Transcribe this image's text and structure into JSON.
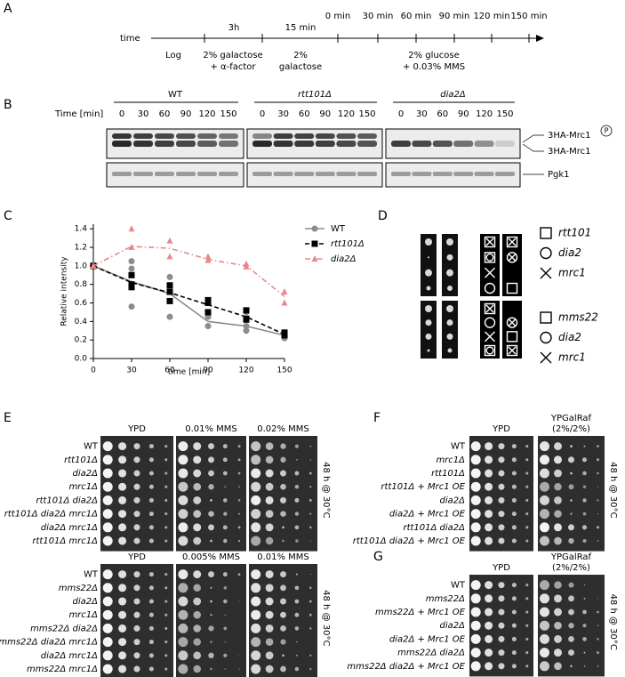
{
  "panel_a": {
    "label": "A",
    "axis_label": "time",
    "durations": [
      "3h",
      "15 min"
    ],
    "timepoints": [
      "0 min",
      "30 min",
      "60 min",
      "90 min",
      "120 min",
      "150 min"
    ],
    "conditions": [
      [
        "Log"
      ],
      [
        "2% galactose",
        "+ α-factor"
      ],
      [
        "2%",
        "galactose"
      ],
      [
        "2% glucose",
        "+ 0.03% MMS"
      ]
    ]
  },
  "panel_b": {
    "label": "B",
    "time_header": "Time [min]",
    "groups": [
      {
        "name": "WT",
        "times": [
          0,
          30,
          60,
          90,
          120,
          150
        ]
      },
      {
        "name": "rtt101Δ",
        "times": [
          0,
          30,
          60,
          90,
          120,
          150
        ]
      },
      {
        "name": "dia2Δ",
        "times": [
          0,
          30,
          60,
          90,
          120,
          150
        ]
      }
    ],
    "band_labels": [
      "3HA-Mrc1",
      "3HA-Mrc1",
      "Pgk1"
    ],
    "phospho_mark": "P"
  },
  "chart_data": {
    "type": "line",
    "panel_label": "C",
    "x": [
      0,
      30,
      60,
      90,
      120,
      150
    ],
    "xlim": [
      0,
      150
    ],
    "xticks": [
      0,
      30,
      60,
      90,
      120,
      150
    ],
    "ylim": [
      0,
      1.45
    ],
    "yticks": [
      {
        "value": 0,
        "label": "0.0"
      },
      0.2,
      0.4,
      0.6,
      0.8,
      {
        "value": 1,
        "label": "1.0"
      },
      1.2,
      1.4
    ],
    "xlabel": "time [min]",
    "ylabel": "Relative intensity",
    "legend": "upper right",
    "series": [
      {
        "name": "WT",
        "color": "#8c8c8c",
        "marker": "circle",
        "linestyle": "solid",
        "values": [
          1.0,
          0.83,
          0.7,
          0.4,
          0.35,
          0.25
        ],
        "replicates": [
          [
            1.0,
            1.0,
            1.0
          ],
          [
            1.05,
            0.97,
            0.56
          ],
          [
            0.88,
            0.72,
            0.45
          ],
          [
            0.35,
            0.45,
            0.48
          ],
          [
            0.5,
            0.35,
            0.3
          ],
          [
            0.22,
            0.25,
            0.28
          ]
        ]
      },
      {
        "name": "rtt101Δ",
        "color": "#000000",
        "marker": "square",
        "linestyle": "dashed",
        "values": [
          1.0,
          0.82,
          0.71,
          0.58,
          0.45,
          0.26
        ],
        "replicates": [
          [
            1.0,
            1.0,
            1.0
          ],
          [
            0.9,
            0.8,
            0.77
          ],
          [
            0.79,
            0.72,
            0.62
          ],
          [
            0.63,
            0.6,
            0.5
          ],
          [
            0.52,
            0.43,
            0.42
          ],
          [
            0.28,
            0.26,
            0.25
          ]
        ]
      },
      {
        "name": "dia2Δ",
        "color": "#e8888a",
        "marker": "triangle",
        "linestyle": "dashdot",
        "values": [
          1.0,
          1.21,
          1.19,
          1.07,
          1.0,
          0.67
        ],
        "replicates": [
          [
            1.0,
            1.0
          ],
          [
            1.4,
            1.2
          ],
          [
            1.27,
            1.1
          ],
          [
            1.1,
            1.06
          ],
          [
            1.02,
            0.99
          ],
          [
            0.72,
            0.6
          ]
        ]
      }
    ]
  },
  "panel_d": {
    "label": "D",
    "legends": [
      {
        "items": [
          "rtt101",
          "dia2",
          "mrc1"
        ]
      },
      {
        "items": [
          "mms22",
          "dia2",
          "mrc1"
        ]
      }
    ]
  },
  "panel_e": {
    "label": "E",
    "blocks": [
      {
        "media": [
          {
            "lines": [
              "YPD"
            ]
          },
          {
            "lines": [
              "0.01% MMS"
            ]
          },
          {
            "lines": [
              "0.02% MMS"
            ]
          }
        ],
        "strains": [
          "WT",
          "rtt101Δ",
          "dia2Δ",
          "mrc1Δ",
          "rtt101Δ dia2Δ",
          "rtt101Δ dia2Δ mrc1Δ",
          "dia2Δ mrc1Δ",
          "rtt101Δ mrc1Δ"
        ],
        "condition": "48 h @ 30°C"
      },
      {
        "media": [
          {
            "lines": [
              "YPD"
            ]
          },
          {
            "lines": [
              "0.005% MMS"
            ]
          },
          {
            "lines": [
              "0.01% MMS"
            ]
          }
        ],
        "strains": [
          "WT",
          "mms22Δ",
          "dia2Δ",
          "mrc1Δ",
          "mms22Δ dia2Δ",
          "mms22Δ dia2Δ mrc1Δ",
          "dia2Δ mrc1Δ",
          "mms22Δ mrc1Δ"
        ],
        "condition": "48 h @ 30°C"
      }
    ]
  },
  "panel_f": {
    "label": "F",
    "blocks": [
      {
        "media": [
          {
            "lines": [
              "YPD"
            ]
          },
          {
            "lines": [
              "YPGalRaf",
              "(2%/2%)"
            ]
          }
        ],
        "strains": [
          "WT",
          "mrc1Δ",
          "rtt101Δ",
          "rtt101Δ + Mrc1 OE",
          "dia2Δ",
          "dia2Δ + Mrc1 OE",
          "rtt101Δ dia2Δ",
          "rtt101Δ dia2Δ + Mrc1 OE"
        ],
        "condition": "48 h @ 30°C"
      }
    ]
  },
  "panel_g": {
    "label": "G",
    "blocks": [
      {
        "media": [
          {
            "lines": [
              "YPD"
            ]
          },
          {
            "lines": [
              "YPGalRaf",
              "(2%/2%)"
            ]
          }
        ],
        "strains": [
          "WT",
          "mms22Δ",
          "mms22Δ + Mrc1 OE",
          "dia2Δ",
          "dia2Δ + Mrc1 OE",
          "mms22Δ dia2Δ",
          "mms22Δ dia2Δ + Mrc1 OE"
        ],
        "condition": "48 h @ 30°C"
      }
    ]
  }
}
